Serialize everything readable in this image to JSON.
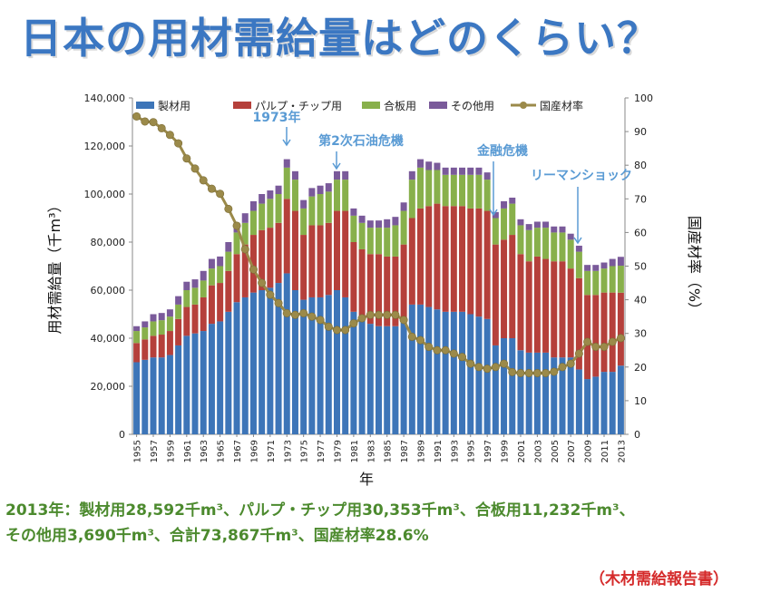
{
  "page_title": "日本の用材需給量はどのくらい？",
  "summary": {
    "line1": "2013年：製材用28,592千m³、パルプ・チップ用30,353千m³、合板用11,232千m³、",
    "line2": "その他用3,690千m³、合計73,867千m³、国産材率28.6%"
  },
  "source": "（木材需給報告書）",
  "colors": {
    "sawn": "#3d75b8",
    "pulp": "#b5403b",
    "plywood": "#88b04b",
    "other": "#7a5a9a",
    "rate": "#9b8a4a",
    "annotation": "#5a9bd4"
  },
  "chart_data": {
    "type": "bar",
    "title": "",
    "xlabel": "年",
    "ylabel": "用材需給量（千m³）",
    "y2label": "国産材率（%）",
    "ylim": [
      0,
      140000
    ],
    "y2lim": [
      0,
      100
    ],
    "yticks": [
      "0",
      "20,000",
      "40,000",
      "60,000",
      "80,000",
      "100,000",
      "120,000",
      "140,000"
    ],
    "y2ticks": [
      "0",
      "10",
      "20",
      "30",
      "40",
      "50",
      "60",
      "70",
      "80",
      "90",
      "100"
    ],
    "legend_position": "top",
    "grid": false,
    "stacked": true,
    "categories": [
      1955,
      1956,
      1957,
      1958,
      1959,
      1960,
      1961,
      1962,
      1963,
      1964,
      1965,
      1966,
      1967,
      1968,
      1969,
      1970,
      1971,
      1972,
      1973,
      1974,
      1975,
      1976,
      1977,
      1978,
      1979,
      1980,
      1981,
      1982,
      1983,
      1984,
      1985,
      1986,
      1987,
      1988,
      1989,
      1990,
      1991,
      1992,
      1993,
      1994,
      1995,
      1996,
      1997,
      1998,
      1999,
      2000,
      2001,
      2002,
      2003,
      2004,
      2005,
      2006,
      2007,
      2008,
      2009,
      2010,
      2011,
      2012,
      2013
    ],
    "xtick_labels": [
      "1955",
      "1957",
      "1959",
      "1961",
      "1963",
      "1965",
      "1967",
      "1969",
      "1971",
      "1973",
      "1975",
      "1977",
      "1979",
      "1981",
      "1983",
      "1985",
      "1987",
      "1989",
      "1991",
      "1993",
      "1995",
      "1997",
      "1999",
      "2001",
      "2003",
      "2005",
      "2007",
      "2009",
      "2011",
      "2013"
    ],
    "series": [
      {
        "name": "製材用",
        "values": [
          30000,
          31000,
          32000,
          32000,
          33000,
          37000,
          41000,
          42000,
          43000,
          46000,
          47000,
          51000,
          55000,
          57000,
          59000,
          60000,
          61000,
          63000,
          67000,
          60000,
          56000,
          57000,
          57000,
          58000,
          60000,
          57000,
          51000,
          49000,
          46000,
          45000,
          45000,
          45000,
          48000,
          54000,
          54000,
          53000,
          52000,
          51000,
          51000,
          51000,
          50000,
          49000,
          48000,
          37000,
          40000,
          40000,
          35000,
          34000,
          34000,
          34000,
          32000,
          32000,
          32000,
          27000,
          23000,
          24000,
          26000,
          26000,
          28592
        ]
      },
      {
        "name": "パルプ・チップ用",
        "values": [
          8000,
          8500,
          9000,
          9500,
          10000,
          11000,
          12000,
          12000,
          14000,
          16000,
          16000,
          17000,
          20000,
          22000,
          24000,
          25000,
          25000,
          25000,
          31000,
          33000,
          27000,
          30000,
          30000,
          30000,
          33000,
          36000,
          29000,
          28000,
          29000,
          30000,
          29000,
          29000,
          31000,
          36000,
          40000,
          42000,
          44000,
          44000,
          44000,
          44000,
          44000,
          45000,
          45000,
          42000,
          41000,
          43000,
          40000,
          38000,
          40000,
          39000,
          40000,
          40000,
          37000,
          38000,
          35000,
          34000,
          33000,
          33000,
          30353
        ]
      },
      {
        "name": "合板用",
        "values": [
          5000,
          5000,
          6000,
          6000,
          6000,
          6000,
          7000,
          7000,
          7000,
          7000,
          7000,
          8000,
          9000,
          9000,
          10000,
          11000,
          12000,
          12000,
          13000,
          13000,
          11000,
          12000,
          13000,
          13000,
          13000,
          13000,
          11000,
          11000,
          11000,
          11000,
          12000,
          13000,
          14000,
          16000,
          17000,
          15000,
          14000,
          13000,
          13000,
          13000,
          14000,
          14000,
          13000,
          11000,
          13000,
          13000,
          12000,
          13000,
          12000,
          13000,
          12000,
          12000,
          12000,
          11000,
          10000,
          10000,
          10000,
          11000,
          11232
        ]
      },
      {
        "name": "その他用",
        "values": [
          2000,
          2500,
          3000,
          3000,
          3000,
          3500,
          3500,
          3500,
          4000,
          4000,
          4000,
          4000,
          4000,
          4000,
          4000,
          4000,
          3500,
          3500,
          3500,
          3500,
          3500,
          3500,
          3500,
          3500,
          3500,
          3500,
          3000,
          3000,
          3000,
          3000,
          3500,
          3500,
          3500,
          3500,
          3500,
          3500,
          3000,
          3000,
          3000,
          3000,
          3000,
          3000,
          3000,
          2500,
          3000,
          2500,
          2500,
          2500,
          2500,
          2500,
          2500,
          2500,
          2500,
          2500,
          2500,
          2500,
          2500,
          3000,
          3690
        ]
      },
      {
        "name": "国産材率",
        "axis": "right",
        "values": [
          94.5,
          93,
          92.8,
          91,
          89,
          86.5,
          82,
          79,
          75.5,
          73,
          71.5,
          67,
          62,
          55,
          49,
          45,
          41.5,
          39,
          36,
          35.5,
          36,
          35,
          34,
          32,
          31,
          31,
          33,
          34.5,
          35.5,
          35.5,
          35.5,
          35.5,
          34,
          29,
          28,
          26,
          25,
          25,
          24,
          23,
          21,
          20,
          19.5,
          20,
          21,
          18.5,
          18.2,
          18.2,
          18.2,
          18.2,
          18.6,
          20,
          21,
          24,
          27.5,
          26,
          26,
          27.5,
          28.6
        ]
      }
    ],
    "annotations": [
      {
        "text": "1973年",
        "year": 1973
      },
      {
        "text": "第2次石油危機",
        "year": 1979
      },
      {
        "text": "金融危機",
        "year": 1998
      },
      {
        "text": "リーマンショック",
        "year": 2008
      }
    ]
  }
}
